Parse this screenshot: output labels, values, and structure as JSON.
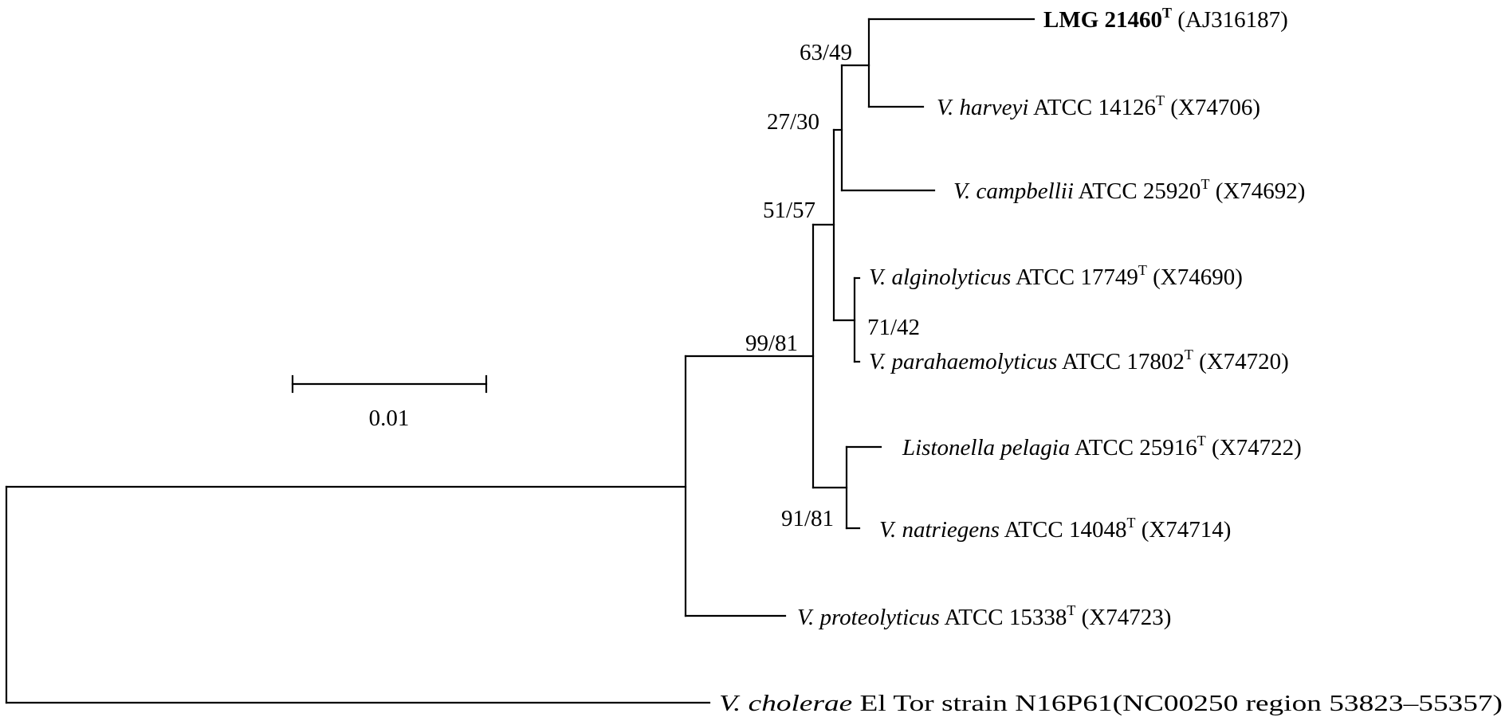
{
  "scale_bar": {
    "label": "0.01"
  },
  "bootstrap": {
    "b1": "63/49",
    "b2": "27/30",
    "b3": "51/57",
    "b4": "71/42",
    "b5": "99/81",
    "b6": "91/81"
  },
  "taxa": [
    {
      "name": "LMG 21460",
      "sup": "T",
      "strain": "",
      "acc": "(AJ316187)",
      "name_italic": false,
      "name_bold": true
    },
    {
      "name": "V. harveyi",
      "sup": "T",
      "strain": "ATCC 14126",
      "acc": "(X74706)",
      "name_italic": true,
      "name_bold": false
    },
    {
      "name": "V. campbellii",
      "sup": "T",
      "strain": "ATCC 25920",
      "acc": "(X74692)",
      "name_italic": true,
      "name_bold": false
    },
    {
      "name": "V. alginolyticus",
      "sup": "T",
      "strain": "ATCC 17749",
      "acc": "(X74690)",
      "name_italic": true,
      "name_bold": false
    },
    {
      "name": "V. parahaemolyticus",
      "sup": "T",
      "strain": "ATCC 17802",
      "acc": "(X74720)",
      "name_italic": true,
      "name_bold": false
    },
    {
      "name": "Listonella pelagia",
      "sup": "T",
      "strain": "ATCC 25916",
      "acc": "(X74722)",
      "name_italic": true,
      "name_bold": false
    },
    {
      "name": "V. natriegens",
      "sup": "T",
      "strain": "ATCC 14048",
      "acc": "(X74714)",
      "name_italic": true,
      "name_bold": false
    },
    {
      "name": "V. proteolyticus",
      "sup": "T",
      "strain": "ATCC 15338",
      "acc": "(X74723)",
      "name_italic": true,
      "name_bold": false
    },
    {
      "name": "V. cholerae",
      "sup": "",
      "strain": "El Tor strain N16P61(NC00250  region  53823–55357)",
      "acc": "",
      "name_italic": true,
      "name_bold": false
    }
  ]
}
